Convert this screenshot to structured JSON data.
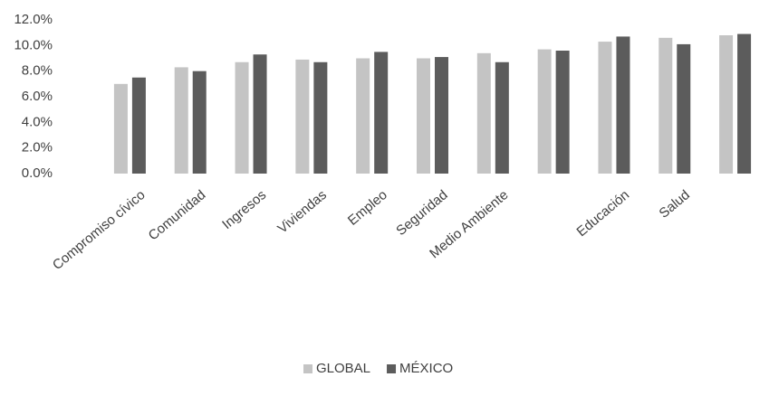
{
  "chart_data": {
    "type": "bar",
    "categories": [
      "Compromiso cívico",
      "Comunidad",
      "Ingresos",
      "Viviendas",
      "Empleo",
      "Seguridad",
      "Medio Ambiente",
      null,
      "Educación",
      "Salud",
      null
    ],
    "series": [
      {
        "name": "GLOBAL",
        "color": "#c4c4c4",
        "values": [
          7.0,
          8.3,
          8.7,
          8.9,
          9.0,
          9.0,
          9.4,
          9.7,
          10.3,
          10.6,
          10.8
        ]
      },
      {
        "name": "MÉXICO",
        "color": "#5c5c5c",
        "values": [
          7.5,
          8.0,
          9.3,
          8.7,
          9.5,
          9.1,
          8.7,
          9.6,
          10.7,
          10.1,
          10.9
        ]
      }
    ],
    "ylim": [
      0,
      12
    ],
    "yticks": [
      {
        "value": 0,
        "label": "0.0%"
      },
      {
        "value": 2,
        "label": "2.0%"
      },
      {
        "value": 4,
        "label": "4.0%"
      },
      {
        "value": 6,
        "label": "6.0%"
      },
      {
        "value": 8,
        "label": "8.0%"
      },
      {
        "value": 10,
        "label": "10.0%"
      },
      {
        "value": 12,
        "label": "12.0%"
      }
    ],
    "grid": false,
    "legend": "bottom"
  }
}
